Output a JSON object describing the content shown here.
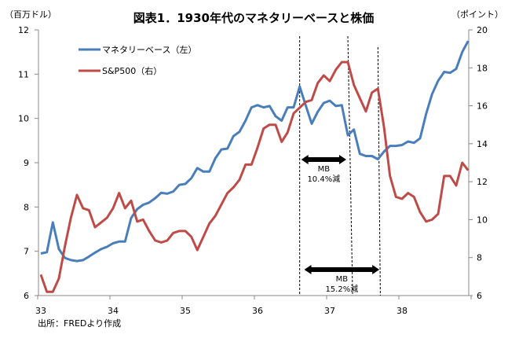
{
  "chart_data": {
    "type": "line",
    "title": "図表1．1930年代のマネタリーベースと株価",
    "left_unit": "（百万ドル）",
    "right_unit": "（ポイント）",
    "source": "出所：FREDより作成",
    "x_tick_labels": [
      "33",
      "34",
      "35",
      "36",
      "37",
      "38"
    ],
    "x_start_year": 33,
    "points_per_year": 12,
    "left_axis": {
      "ylim": [
        6,
        12
      ],
      "ticks": [
        "6",
        "7",
        "8",
        "9",
        "10",
        "11",
        "12"
      ]
    },
    "right_axis": {
      "ylim": [
        6,
        20
      ],
      "ticks": [
        "6",
        "8",
        "10",
        "12",
        "14",
        "16",
        "18",
        "20"
      ]
    },
    "series": [
      {
        "name": "マネタリーベース（左）",
        "axis": "left",
        "color": "#4a7ebb",
        "values": [
          6.95,
          6.98,
          7.65,
          7.05,
          6.85,
          6.8,
          6.78,
          6.8,
          6.88,
          6.97,
          7.05,
          7.1,
          7.18,
          7.22,
          7.22,
          7.75,
          7.95,
          8.05,
          8.1,
          8.2,
          8.32,
          8.3,
          8.35,
          8.5,
          8.52,
          8.65,
          8.88,
          8.8,
          8.8,
          9.1,
          9.3,
          9.32,
          9.6,
          9.7,
          9.95,
          10.25,
          10.3,
          10.25,
          10.28,
          10.05,
          9.95,
          10.25,
          10.25,
          10.72,
          10.3,
          9.88,
          10.15,
          10.35,
          10.4,
          10.28,
          10.3,
          9.62,
          9.75,
          9.2,
          9.15,
          9.15,
          9.08,
          9.25,
          9.38,
          9.38,
          9.4,
          9.48,
          9.45,
          9.55,
          10.1,
          10.55,
          10.85,
          11.05,
          11.03,
          11.12,
          11.5,
          11.75
        ]
      },
      {
        "name": "S&P500（右）",
        "axis": "right",
        "color": "#be4b48",
        "values": [
          7.1,
          6.2,
          6.2,
          6.9,
          8.6,
          10.1,
          11.3,
          10.6,
          10.5,
          9.6,
          9.85,
          10.1,
          10.6,
          11.4,
          10.6,
          11.0,
          9.9,
          10.0,
          9.4,
          8.9,
          8.8,
          8.9,
          9.3,
          9.4,
          9.4,
          9.1,
          8.4,
          9.1,
          9.8,
          10.2,
          10.8,
          11.4,
          11.7,
          12.1,
          12.9,
          12.9,
          13.8,
          14.8,
          15.0,
          15.0,
          14.1,
          14.6,
          15.6,
          15.9,
          16.2,
          16.3,
          17.2,
          17.6,
          17.3,
          17.9,
          18.3,
          18.3,
          17.1,
          16.4,
          15.7,
          16.7,
          16.9,
          14.9,
          12.3,
          11.2,
          11.1,
          11.4,
          11.2,
          10.4,
          9.9,
          10.0,
          10.3,
          12.3,
          12.3,
          11.8,
          13.0,
          12.6
        ]
      }
    ],
    "vlines_month_index": [
      43,
      51,
      56
    ],
    "vline_bottom_month_index": [
      51.8,
      56.4
    ],
    "annotations": [
      {
        "label": "MB",
        "text": "10.4%減",
        "from_month": 43,
        "to_month": 51
      },
      {
        "label": "MB",
        "text": "15.2%減",
        "from_month": 43.5,
        "to_month": 56.5
      }
    ],
    "grid": false,
    "legend": "top-left"
  }
}
